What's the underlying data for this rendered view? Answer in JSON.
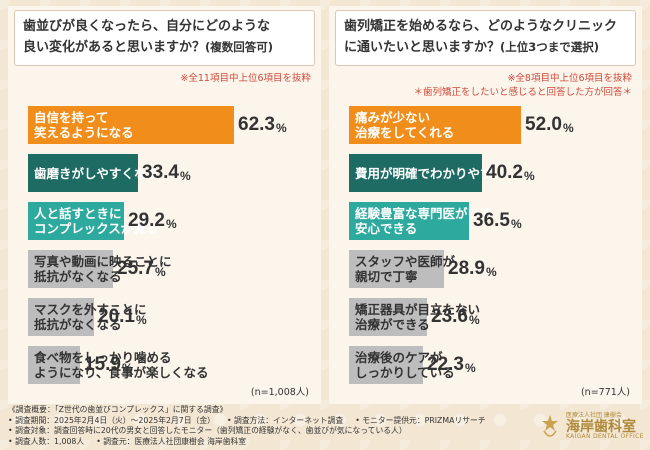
{
  "colors": {
    "orange": "#f08d1b",
    "dark_teal": "#1e6b63",
    "teal": "#2ea99e",
    "gray": "#bdbdbd",
    "value_text": "#333333",
    "note_red": "#d24a3a"
  },
  "chart_data": [
    {
      "type": "bar",
      "title": "歯並びが良くなったら、自分にどのような\n良い変化があると思いますか？",
      "title_suffix": "(複数回答可)",
      "note": "※全11項目中上位6項目を抜粋",
      "categories": [
        "自信を持って\n笑えるようになる",
        "歯磨きがしやすくなる",
        "人と話すときに\nコンプレックスが減る",
        "写真や動画に映ることに\n抵抗がなくなる",
        "マスクを外すことに\n抵抗がなくなる",
        "食べ物をしっかり噛める\nようになり、食事が楽しくなる"
      ],
      "values": [
        62.3,
        33.4,
        29.2,
        25.7,
        20.1,
        15.9
      ],
      "value_labels": [
        "62.3",
        "33.4",
        "29.2",
        "25.7",
        "20.1",
        "15.9"
      ],
      "unit": "%",
      "n_label": "(n=1,008人)",
      "xlim": [
        0,
        100
      ]
    },
    {
      "type": "bar",
      "title": "歯列矯正を始めるなら、どのようなクリニック\nに通いたいと思いますか？",
      "title_suffix": "(上位3つまで選択)",
      "note": "※全8項目中上位6項目を抜粋",
      "note2": "＊歯列矯正をしたいと感じると回答した方が回答＊",
      "categories": [
        "痛みが少ない\n治療をしてくれる",
        "費用が明確でわかりやすい",
        "経験豊富な専門医がいて\n安心できる",
        "スタッフや医師が\n親切で丁寧",
        "矯正器具が目立たない\n治療ができる",
        "治療後のケアが\nしっかりしている"
      ],
      "values": [
        52.0,
        40.2,
        36.5,
        28.9,
        23.6,
        22.3
      ],
      "value_labels": [
        "52.0",
        "40.2",
        "36.5",
        "28.9",
        "23.6",
        "22.3"
      ],
      "unit": "%",
      "n_label": "(n=771人)",
      "xlim": [
        0,
        100
      ]
    }
  ],
  "footer": {
    "line1": "《調査概要：「Z世代の歯並びコンプレックス」に関する調査》",
    "period": "• 調査期間：2025年2月4日（火）〜2025年2月7日（金）",
    "method": "• 調査方法：インターネット調査",
    "provider": "• モニター提供元：PRIZMAリサーチ",
    "target": "• 調査対象：調査回答時に20代の男女と回答したモニター（歯列矯正の経験がなく、歯並びが気になっている人）",
    "count": "• 調査人数：1,008人",
    "sponsor": "• 調査元：医療法人社団康樹会 海岸歯科室"
  },
  "logo": {
    "tagline": "医療法人社団 康樹会",
    "name": "海岸歯科室",
    "english": "KAIGAN DENTAL OFFICE",
    "icon": "tooth-star-icon"
  }
}
